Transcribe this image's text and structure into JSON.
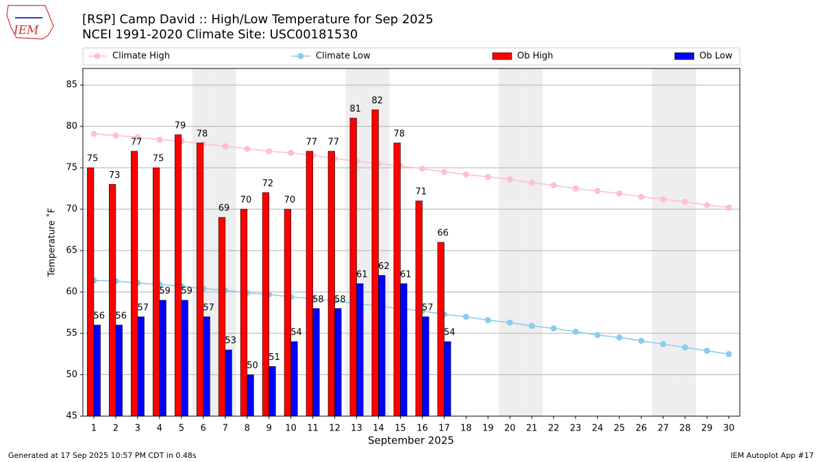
{
  "logo_text": "IEM",
  "footer_left": "Generated at 17 Sep 2025 10:57 PM CDT in 0.48s",
  "footer_right": "IEM Autoplot App #17",
  "chart_data": {
    "type": "bar",
    "title": "[RSP] Camp David :: High/Low Temperature for Sep 2025",
    "subtitle": "NCEI 1991-2020 Climate Site: USC00181530",
    "x_label": "September 2025",
    "y_label": "Temperature ˚F",
    "x": [
      1,
      2,
      3,
      4,
      5,
      6,
      7,
      8,
      9,
      10,
      11,
      12,
      13,
      14,
      15,
      16,
      17,
      18,
      19,
      20,
      21,
      22,
      23,
      24,
      25,
      26,
      27,
      28,
      29,
      30
    ],
    "xlim": [
      0.5,
      30.5
    ],
    "xticks": [
      1,
      2,
      3,
      4,
      5,
      6,
      7,
      8,
      9,
      10,
      11,
      12,
      13,
      14,
      15,
      16,
      17,
      18,
      19,
      20,
      21,
      22,
      23,
      24,
      25,
      26,
      27,
      28,
      29,
      30
    ],
    "ylim": [
      45,
      87
    ],
    "yticks": [
      45,
      50,
      55,
      60,
      65,
      70,
      75,
      80,
      85
    ],
    "grid": true,
    "weekend_days": [
      6,
      7,
      13,
      14,
      20,
      21,
      27,
      28
    ],
    "series": [
      {
        "name": "Climate High",
        "type": "line",
        "color": "#ffc0cb",
        "values": [
          79.1,
          78.9,
          78.7,
          78.4,
          78.2,
          77.9,
          77.6,
          77.3,
          77.0,
          76.8,
          76.5,
          76.1,
          75.8,
          75.5,
          75.2,
          74.9,
          74.5,
          74.2,
          73.9,
          73.6,
          73.2,
          72.9,
          72.5,
          72.2,
          71.9,
          71.5,
          71.2,
          70.9,
          70.5,
          70.2
        ]
      },
      {
        "name": "Climate Low",
        "type": "line",
        "color": "#87ceeb",
        "values": [
          61.4,
          61.3,
          61.1,
          60.9,
          60.7,
          60.4,
          60.2,
          59.9,
          59.7,
          59.4,
          59.2,
          58.9,
          58.6,
          58.3,
          58.0,
          57.7,
          57.3,
          57.0,
          56.6,
          56.3,
          55.9,
          55.6,
          55.2,
          54.8,
          54.5,
          54.1,
          53.7,
          53.3,
          52.9,
          52.5
        ]
      },
      {
        "name": "Ob High",
        "type": "bar",
        "color": "#ff0000",
        "values": [
          75,
          73,
          77,
          75,
          79,
          78,
          69,
          70,
          72,
          70,
          77,
          77,
          81,
          82,
          78,
          71,
          66,
          null,
          null,
          null,
          null,
          null,
          null,
          null,
          null,
          null,
          null,
          null,
          null,
          null
        ]
      },
      {
        "name": "Ob Low",
        "type": "bar",
        "color": "#0000ff",
        "values": [
          56,
          56,
          57,
          59,
          59,
          57,
          53,
          50,
          51,
          54,
          58,
          58,
          61,
          62,
          61,
          57,
          54,
          null,
          null,
          null,
          null,
          null,
          null,
          null,
          null,
          null,
          null,
          null,
          null,
          null
        ]
      }
    ]
  }
}
